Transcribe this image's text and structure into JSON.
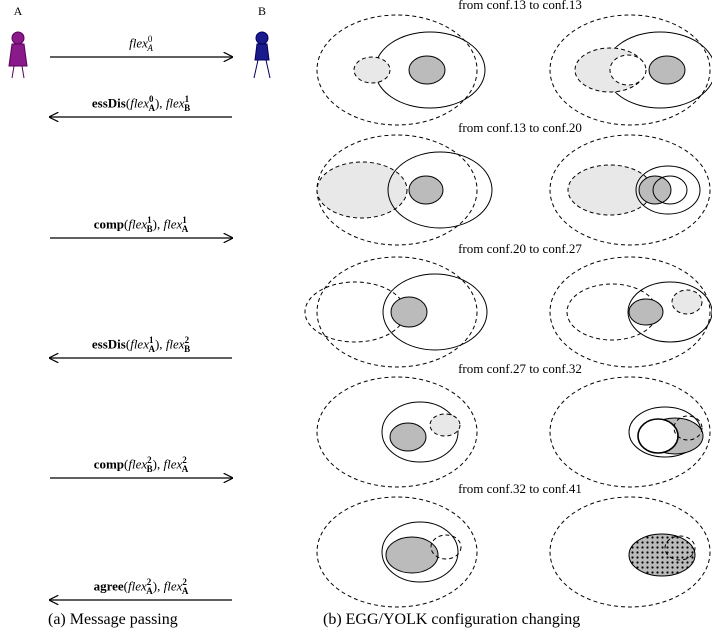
{
  "panel_a": {
    "agent_a": "A",
    "agent_b": "B",
    "messages": [
      {
        "base": "flex",
        "sup": "0",
        "sub": "A"
      },
      {
        "func": "essDis",
        "open": "(",
        "arg": {
          "base": "flex",
          "sup": "0",
          "sub": "A"
        },
        "sep": "), ",
        "next": {
          "base": "flex",
          "sup": "1",
          "sub": "B"
        }
      },
      {
        "func": "comp",
        "open": "(",
        "arg": {
          "base": "flex",
          "sup": "1",
          "sub": "B"
        },
        "sep": "), ",
        "next": {
          "base": "flex",
          "sup": "1",
          "sub": "A"
        }
      },
      {
        "func": "essDis",
        "open": "(",
        "arg": {
          "base": "flex",
          "sup": "1",
          "sub": "A"
        },
        "sep": "), ",
        "next": {
          "base": "flex",
          "sup": "2",
          "sub": "B"
        }
      },
      {
        "func": "comp",
        "open": "(",
        "arg": {
          "base": "flex",
          "sup": "2",
          "sub": "B"
        },
        "sep": "), ",
        "next": {
          "base": "flex",
          "sup": "2",
          "sub": "A"
        }
      },
      {
        "func": "agree",
        "open": "(",
        "arg": {
          "base": "flex",
          "sup": "2",
          "sub": "A"
        },
        "sep": "), ",
        "next": {
          "base": "flex",
          "sup": "2",
          "sub": "A"
        }
      }
    ],
    "caption": "(a) Message passing"
  },
  "panel_b": {
    "transitions": [
      "from conf.13 to conf.13",
      "from conf.13 to conf.20",
      "from conf.20 to conf.27",
      "from conf.27 to conf.32",
      "from conf.32 to conf.41"
    ],
    "caption": "(b) EGG/YOLK configuration changing"
  }
}
